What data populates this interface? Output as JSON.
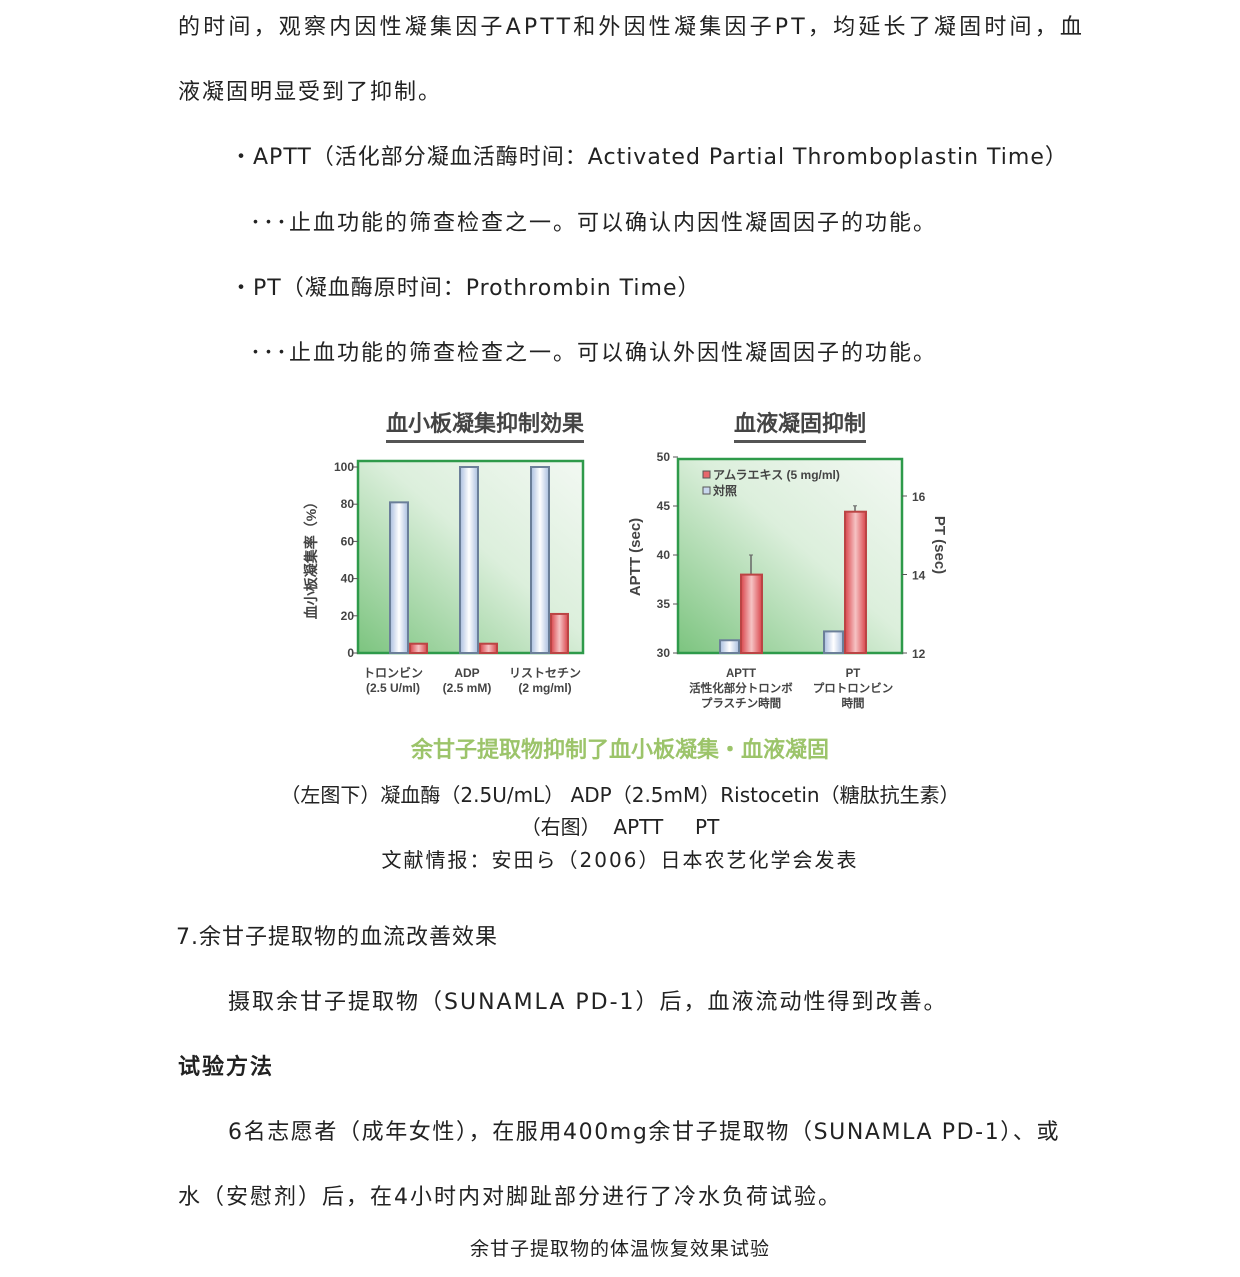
{
  "paragraphs": {
    "p1_line1": "的时间，观察内因性凝集因子APTT和外因性凝集因子PT，均延长了凝固时间，血",
    "p1_line2": "液凝固明显受到了抑制。",
    "aptt_def": "・APTT（活化部分凝血活酶时间：Activated Partial Thromboplastin Time）",
    "aptt_desc": "･･･止血功能的筛查检查之一。可以确认内因性凝固因子的功能。",
    "pt_def": "・PT（凝血酶原时间：Prothrombin Time）",
    "pt_desc": "･･･止血功能的筛查检查之一。可以确认外因性凝固因子的功能。"
  },
  "figure": {
    "banner": "余甘子提取物抑制了血小板凝集・血液凝固",
    "caption_line1": "（左图下）凝血酶（2.5U/mL） ADP（2.5mM）Ristocetin（糖肽抗生素）",
    "caption_line2": "（右图）  APTT     PT",
    "reference": "文献情报：安田ら（2006）日本农艺化学会发表"
  },
  "section7": {
    "heading": "7.余甘子提取物的血流改善效果",
    "intro": "摄取余甘子提取物（SUNAMLA PD-1）后，血液流动性得到改善。",
    "method_heading": "试验方法",
    "method_line1": "6名志愿者（成年女性），在服用400mg余甘子提取物（SUNAMLA PD-1）、或",
    "method_line2": "水（安慰剂）后，在4小时内对脚趾部分进行了冷水负荷试验。",
    "next_title": "余甘子提取物的体温恢复效果试验"
  },
  "chart_data": [
    {
      "type": "bar",
      "title": "血小板凝集抑制効果",
      "ylabel": "血小板凝集率（%）",
      "ylim": [
        0,
        100
      ],
      "yticks": [
        "0",
        "20",
        "40",
        "60",
        "80",
        "100"
      ],
      "categories": [
        [
          "トロンビン",
          "(2.5 U/ml)"
        ],
        [
          "ADP",
          "(2.5 mM)"
        ],
        [
          "リストセチン",
          "(2 mg/ml)"
        ]
      ],
      "series": [
        {
          "values": [
            81,
            100,
            100
          ],
          "color": "#c9d8ee"
        },
        {
          "values": [
            5,
            5,
            21
          ],
          "color": "#e8676b"
        }
      ]
    },
    {
      "type": "bar",
      "title": "血液凝固抑制",
      "ylabel": "APTT (sec)",
      "y2label": "PT (sec)",
      "ylim": [
        30,
        50
      ],
      "y2lim": [
        12,
        17
      ],
      "yticks": [
        "30",
        "35",
        "40",
        "45",
        "50"
      ],
      "y2ticks": [
        "12",
        "14",
        "16"
      ],
      "legend": [
        "アムラエキス (5 mg/ml)",
        "対照"
      ],
      "legend_position": "top-left",
      "categories": [
        [
          "APTT",
          "活性化部分トロンボ",
          "プラスチン時間"
        ],
        [
          "PT",
          "プロトロンビン",
          "時間"
        ]
      ],
      "series": [
        {
          "name": "対照",
          "axis": [
            "left",
            "right"
          ],
          "values": [
            31.3,
            12.55
          ],
          "color": "#c9d8ee"
        },
        {
          "name": "アムラエキス (5 mg/ml)",
          "axis": [
            "left",
            "right"
          ],
          "values": [
            38,
            15.6
          ],
          "errors": [
            2,
            0.15
          ],
          "color": "#e8676b"
        }
      ]
    }
  ]
}
